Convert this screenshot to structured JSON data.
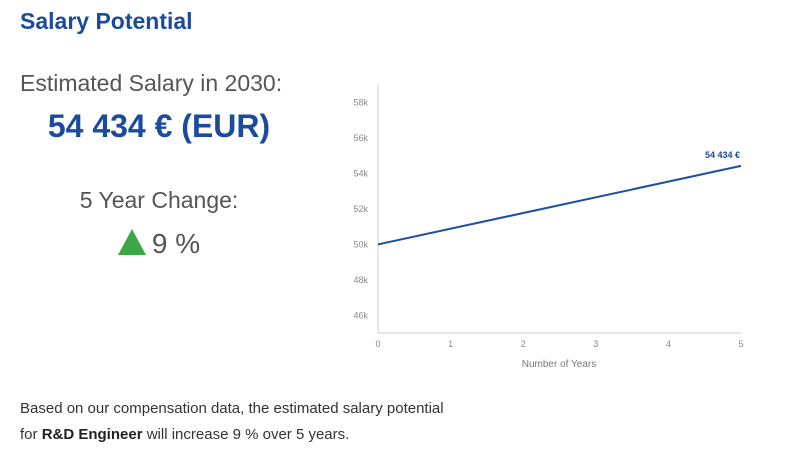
{
  "header": {
    "title": "Salary Potential"
  },
  "estimate": {
    "label": "Estimated Salary in 2030:",
    "value": "54 434 € (EUR)"
  },
  "change": {
    "label": "5 Year Change:",
    "value": "9 %",
    "direction_icon": "up-triangle-icon",
    "icon_color": "#3aa845"
  },
  "footer": {
    "text_before": "Based on our compensation data, the estimated salary potential",
    "text_for": "for",
    "role": "R&D Engineer",
    "text_after": "will increase 9 % over 5 years."
  },
  "colors": {
    "accent": "#1a4b9c",
    "positive": "#3aa845"
  },
  "chart_data": {
    "type": "line",
    "title": "",
    "xlabel": "Number of Years",
    "ylabel": "",
    "x": [
      0,
      5
    ],
    "series": [
      {
        "values": [
          50000,
          54434
        ],
        "color": "#1f4fa0"
      }
    ],
    "end_label": "54 434 €",
    "xticks": [
      0,
      1,
      2,
      3,
      4,
      5
    ],
    "yticks": [
      46000,
      48000,
      50000,
      52000,
      54000,
      56000,
      58000
    ],
    "ytick_labels": [
      "46k",
      "48k",
      "50k",
      "52k",
      "54k",
      "56k",
      "58k"
    ],
    "xlim": [
      0,
      5
    ],
    "ylim": [
      45000,
      59000
    ],
    "grid": false,
    "legend": "none"
  }
}
